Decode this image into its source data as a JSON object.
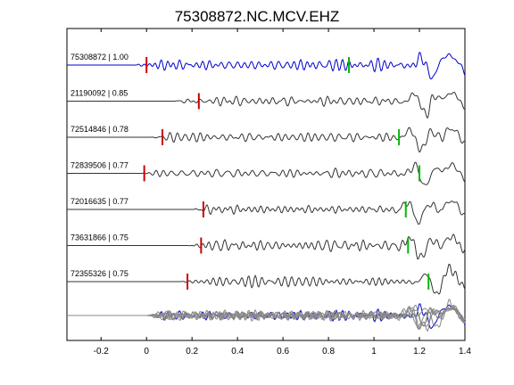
{
  "chart_data": {
    "type": "line",
    "title": "75308872.NC.MCV.EHZ",
    "xlabel": "",
    "ylabel": "",
    "xlim": [
      -0.35,
      1.4
    ],
    "xticks": [
      -0.2,
      0,
      0.2,
      0.4,
      0.6,
      0.8,
      1,
      1.2,
      1.4
    ],
    "xtick_labels": [
      "-0.2",
      "0",
      "0.2",
      "0.4",
      "0.6",
      "0.8",
      "1",
      "1.2",
      "1.4"
    ],
    "grid": false,
    "colors": {
      "reference_trace": "#0000cc",
      "trace": "#333333",
      "stack_trace": "#888888",
      "pick_red": "#cc0000",
      "pick_green": "#00bb00"
    },
    "traces": [
      {
        "label": "75308872 | 1.00",
        "color": "#0000cc",
        "onset": -0.05,
        "red_pick": 0.0,
        "green_pick": 0.89,
        "seed": 3,
        "big_at": 1.25
      },
      {
        "label": "21190092 | 0.85",
        "color": "#333333",
        "onset": 0.12,
        "red_pick": 0.23,
        "green_pick": null,
        "seed": 7,
        "big_at": 1.22
      },
      {
        "label": "72514846 | 0.78",
        "color": "#333333",
        "onset": 0.02,
        "red_pick": 0.07,
        "green_pick": 1.11,
        "seed": 11,
        "big_at": 1.2
      },
      {
        "label": "72839506 | 0.77",
        "color": "#333333",
        "onset": -0.02,
        "red_pick": -0.01,
        "green_pick": 1.2,
        "seed": 13,
        "big_at": 1.22
      },
      {
        "label": "72016635 | 0.77",
        "color": "#333333",
        "onset": 0.2,
        "red_pick": 0.25,
        "green_pick": 1.14,
        "seed": 17,
        "big_at": 1.19
      },
      {
        "label": "73631866 | 0.75",
        "color": "#333333",
        "onset": 0.18,
        "red_pick": 0.24,
        "green_pick": 1.15,
        "seed": 19,
        "big_at": 1.2
      },
      {
        "label": "72355326 | 0.75",
        "color": "#333333",
        "onset": 0.14,
        "red_pick": 0.18,
        "green_pick": 1.24,
        "seed": 23,
        "big_at": 1.27
      }
    ]
  }
}
